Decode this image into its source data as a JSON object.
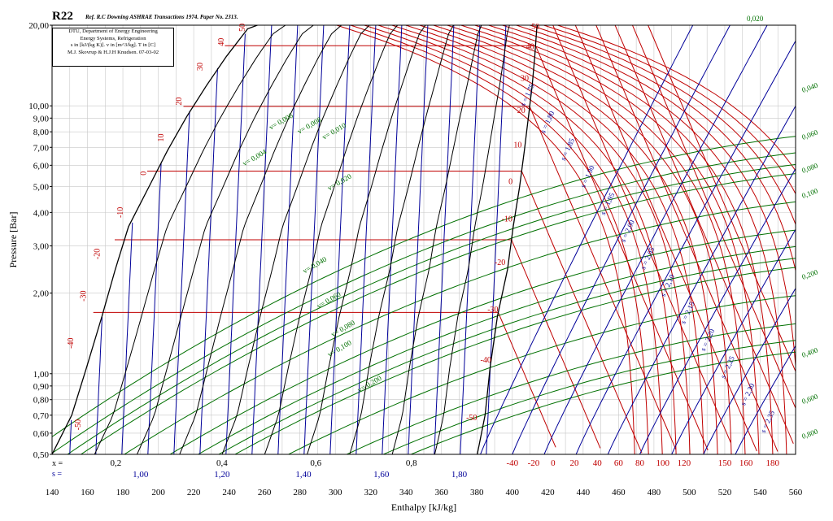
{
  "chart_data": {
    "type": "line",
    "title": "R22",
    "reference": "Ref. R.C Downing ASHRAE Transactions 1974. Paper No. 2313.",
    "info": [
      "DTU, Department of Energy Engineering",
      "Energy Systems, Refrigeration",
      "s in [kJ/(kg K)]. v in [m^3/kg]. T in [C]",
      "M.J. Skovrup & H.J.H Knudsen. 07-03-02"
    ],
    "xlabel": "Enthalpy [kJ/kg]",
    "ylabel": "Pressure [Bar]",
    "xlim": [
      140,
      560
    ],
    "ylim": [
      0.5,
      20
    ],
    "yscale": "log",
    "grid": true,
    "x_ticks": [
      "140",
      "160",
      "180",
      "200",
      "220",
      "240",
      "260",
      "280",
      "300",
      "320",
      "340",
      "360",
      "380",
      "400",
      "420",
      "440",
      "460",
      "480",
      "500",
      "520",
      "540",
      "560"
    ],
    "y_ticks": [
      "0,50",
      "0,60",
      "0,70",
      "0,80",
      "0,90",
      "1,00",
      "2,00",
      "3,00",
      "4,00",
      "5,00",
      "6,00",
      "7,00",
      "8,00",
      "9,00",
      "10,00",
      "20,00"
    ],
    "x_quality_label": "x =",
    "s_row_label": "s =",
    "quality_row": [
      {
        "h": 176,
        "t": "0,2"
      },
      {
        "h": 236,
        "t": "0,4"
      },
      {
        "h": 289,
        "t": "0,6"
      },
      {
        "h": 343,
        "t": "0,8"
      }
    ],
    "s_row": [
      {
        "h": 190,
        "t": "1,00"
      },
      {
        "h": 236,
        "t": "1,20"
      },
      {
        "h": 282,
        "t": "1,40"
      },
      {
        "h": 326,
        "t": "1,60"
      },
      {
        "h": 370,
        "t": "1,80"
      }
    ],
    "temp_row": [
      {
        "h": 400,
        "t": "-40"
      },
      {
        "h": 412,
        "t": "-20"
      },
      {
        "h": 423,
        "t": "0"
      },
      {
        "h": 435,
        "t": "20"
      },
      {
        "h": 448,
        "t": "40"
      },
      {
        "h": 460,
        "t": "60"
      },
      {
        "h": 472,
        "t": "80"
      },
      {
        "h": 485,
        "t": "100"
      },
      {
        "h": 497,
        "t": "120"
      },
      {
        "h": 520,
        "t": "150"
      },
      {
        "h": 532,
        "t": "160"
      },
      {
        "h": 547,
        "t": "180"
      }
    ],
    "liquid_sat": [
      {
        "h": 140.0,
        "p": 0.5
      },
      {
        "h": 151.1,
        "p": 0.7
      },
      {
        "h": 159.4,
        "p": 1.05
      },
      {
        "h": 168.2,
        "p": 1.64
      },
      {
        "h": 175.7,
        "p": 2.45
      },
      {
        "h": 183.2,
        "p": 3.54
      },
      {
        "h": 194.7,
        "p": 4.98
      },
      {
        "h": 205.2,
        "p": 6.81
      },
      {
        "h": 216.0,
        "p": 9.1
      },
      {
        "h": 227.2,
        "p": 11.9
      },
      {
        "h": 238.5,
        "p": 15.3
      },
      {
        "h": 250.5,
        "p": 19.4
      },
      {
        "h": 256.0,
        "p": 20.0
      }
    ],
    "vapor_sat": [
      {
        "h": 380.2,
        "p": 0.5
      },
      {
        "h": 384.6,
        "p": 0.7
      },
      {
        "h": 387.4,
        "p": 1.05
      },
      {
        "h": 391.6,
        "p": 1.64
      },
      {
        "h": 397.3,
        "p": 2.45
      },
      {
        "h": 400.5,
        "p": 3.54
      },
      {
        "h": 404.1,
        "p": 4.98
      },
      {
        "h": 406.8,
        "p": 6.81
      },
      {
        "h": 409.1,
        "p": 9.1
      },
      {
        "h": 411.2,
        "p": 11.9
      },
      {
        "h": 412.7,
        "p": 15.3
      },
      {
        "h": 413.8,
        "p": 19.4
      },
      {
        "h": 414.2,
        "p": 20.0
      }
    ],
    "sat_temps": [
      {
        "t": "-50",
        "p": 0.64
      },
      {
        "t": "-40",
        "p": 1.05
      },
      {
        "t": "-30",
        "p": 1.64
      },
      {
        "t": "-20",
        "p": 2.45
      },
      {
        "t": "-10",
        "p": 3.54
      },
      {
        "t": "0",
        "p": 4.98
      },
      {
        "t": "10",
        "p": 6.81
      },
      {
        "t": "20",
        "p": 9.1
      },
      {
        "t": "30",
        "p": 11.9
      },
      {
        "t": "40",
        "p": 15.3
      },
      {
        "t": "50",
        "p": 19.4
      }
    ],
    "liquid_temp_labels": [
      {
        "t": "-50",
        "h": 156,
        "p": 0.645
      },
      {
        "t": "-40",
        "h": 152,
        "p": 1.3
      },
      {
        "t": "-30",
        "h": 159,
        "p": 1.95
      },
      {
        "t": "-20",
        "h": 167,
        "p": 2.8
      },
      {
        "t": "-10",
        "h": 180,
        "p": 4.0
      },
      {
        "t": "0",
        "h": 193,
        "p": 5.6
      },
      {
        "t": "10",
        "h": 203,
        "p": 7.6
      },
      {
        "t": "20",
        "h": 213,
        "p": 10.4
      },
      {
        "t": "30",
        "h": 225,
        "p": 14.0
      },
      {
        "t": "40",
        "h": 237,
        "p": 17.3
      },
      {
        "t": "50",
        "h": 249,
        "p": 19.6
      }
    ],
    "vapor_temp_labels": [
      {
        "t": "-50",
        "h": 377,
        "p": 0.67
      },
      {
        "t": "-40",
        "h": 385,
        "p": 1.1
      },
      {
        "t": "-30",
        "h": 389,
        "p": 1.7
      },
      {
        "t": "-20",
        "h": 393,
        "p": 2.55
      },
      {
        "t": "-10",
        "h": 397,
        "p": 3.7
      },
      {
        "t": "0",
        "h": 399,
        "p": 5.1
      },
      {
        "t": "10",
        "h": 403,
        "p": 7.0
      },
      {
        "t": "20",
        "h": 405,
        "p": 9.4
      },
      {
        "t": "30",
        "h": 407,
        "p": 12.4
      },
      {
        "t": "40",
        "h": 410,
        "p": 16.3
      },
      {
        "t": "50",
        "h": 413,
        "p": 19.3
      }
    ],
    "volume_series": [
      {
        "name": "0,004",
        "p": 6.3,
        "h": 255
      },
      {
        "name": "0,006",
        "p": 8.6,
        "h": 270
      },
      {
        "name": "0,008",
        "p": 8.3,
        "h": 286
      },
      {
        "name": "0,010",
        "p": 7.9,
        "h": 300
      },
      {
        "name": "0,020",
        "p": 5.1,
        "h": 303
      },
      {
        "name": "0,040",
        "p": 2.5,
        "h": 289
      },
      {
        "name": "0,060",
        "p": 1.85,
        "h": 297
      },
      {
        "name": "0,080",
        "p": 1.45,
        "h": 305
      },
      {
        "name": "0,100",
        "p": 1.22,
        "h": 303
      },
      {
        "name": "0,200",
        "p": 0.9,
        "h": 320
      }
    ],
    "volume_right_labels": [
      "0,020",
      "0,040",
      "0,060",
      "0,080",
      "0,100",
      "0,200",
      "0,400",
      "0,600",
      "0,800"
    ],
    "entropy_labels": [
      "1,75",
      "1,80",
      "1,85",
      "1,90",
      "1,95",
      "2,00",
      "2,05",
      "2,10",
      "2,15",
      "2,20",
      "2,25",
      "2,30",
      "2,35"
    ],
    "colors": {
      "temperature": "#c00000",
      "entropy": "#000099",
      "volume": "#007000",
      "saturation": "#000000",
      "quality": "#000000",
      "grid": "#c8c8c8"
    }
  }
}
